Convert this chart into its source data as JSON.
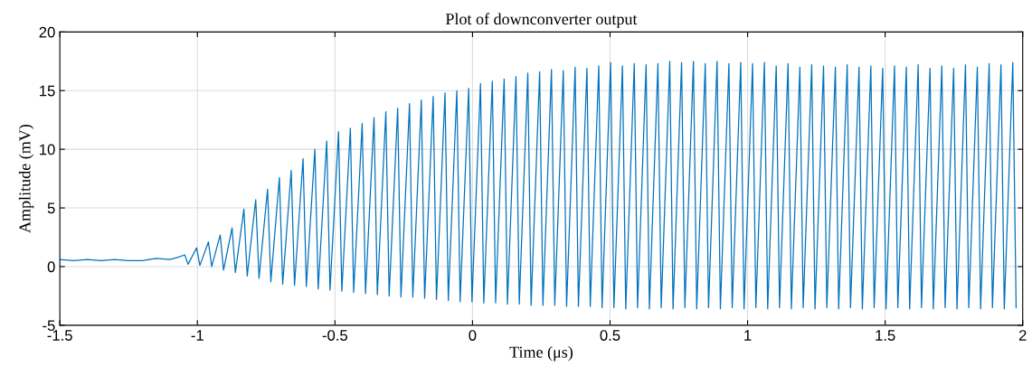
{
  "chart_data": {
    "type": "line",
    "title": "Plot of downconverter output",
    "xlabel": "Time (μs)",
    "ylabel": "Amplitude (mV)",
    "xlim": [
      -1.5,
      2
    ],
    "xticks": [
      -1.5,
      -1,
      -0.5,
      0,
      0.5,
      1,
      1.5,
      2
    ],
    "ylim": [
      -5,
      20
    ],
    "yticks": [
      -5,
      0,
      5,
      10,
      15,
      20
    ],
    "grid": true,
    "line_style": "solid",
    "marker": "none",
    "series": [
      {
        "color": "#0072bd",
        "x": [
          -1.5,
          -1.45,
          -1.4,
          -1.35,
          -1.3,
          -1.25,
          -1.2,
          -1.15,
          -1.1,
          -1.07,
          -1.046,
          -1.034,
          -1.003,
          -0.991,
          -0.96,
          -0.948,
          -0.917,
          -0.905,
          -0.874,
          -0.862,
          -0.831,
          -0.819,
          -0.788,
          -0.776,
          -0.745,
          -0.733,
          -0.702,
          -0.69,
          -0.659,
          -0.647,
          -0.616,
          -0.604,
          -0.573,
          -0.561,
          -0.53,
          -0.518,
          -0.487,
          -0.475,
          -0.444,
          -0.432,
          -0.401,
          -0.389,
          -0.358,
          -0.346,
          -0.315,
          -0.303,
          -0.272,
          -0.26,
          -0.229,
          -0.217,
          -0.186,
          -0.174,
          -0.143,
          -0.131,
          -0.1,
          -0.088,
          -0.057,
          -0.045,
          -0.014,
          -0.002,
          0.029,
          0.041,
          0.072,
          0.084,
          0.115,
          0.127,
          0.158,
          0.17,
          0.201,
          0.213,
          0.244,
          0.256,
          0.287,
          0.299,
          0.33,
          0.342,
          0.373,
          0.385,
          0.416,
          0.428,
          0.459,
          0.471,
          0.502,
          0.514,
          0.545,
          0.557,
          0.588,
          0.6,
          0.631,
          0.643,
          0.674,
          0.686,
          0.717,
          0.729,
          0.76,
          0.772,
          0.803,
          0.815,
          0.846,
          0.858,
          0.889,
          0.901,
          0.932,
          0.944,
          0.975,
          0.987,
          1.018,
          1.03,
          1.061,
          1.073,
          1.104,
          1.116,
          1.147,
          1.159,
          1.19,
          1.202,
          1.233,
          1.245,
          1.276,
          1.288,
          1.319,
          1.331,
          1.362,
          1.374,
          1.405,
          1.417,
          1.448,
          1.46,
          1.491,
          1.503,
          1.534,
          1.546,
          1.577,
          1.589,
          1.62,
          1.632,
          1.663,
          1.675,
          1.706,
          1.718,
          1.749,
          1.761,
          1.792,
          1.804,
          1.835,
          1.847,
          1.878,
          1.89,
          1.921,
          1.933,
          1.964,
          1.976
        ],
        "values": [
          0.6,
          0.5,
          0.6,
          0.5,
          0.6,
          0.5,
          0.5,
          0.7,
          0.6,
          0.8,
          1.0,
          0.2,
          1.6,
          0.1,
          2.1,
          0.0,
          2.7,
          -0.3,
          3.3,
          -0.5,
          4.9,
          -0.8,
          5.7,
          -1.0,
          6.6,
          -1.3,
          7.6,
          -1.5,
          8.2,
          -1.6,
          9.2,
          -1.7,
          10.0,
          -1.9,
          10.7,
          -2.0,
          11.5,
          -2.1,
          11.8,
          -2.2,
          12.2,
          -2.3,
          12.7,
          -2.4,
          13.2,
          -2.5,
          13.5,
          -2.6,
          13.9,
          -2.6,
          14.2,
          -2.7,
          14.5,
          -2.8,
          14.8,
          -2.9,
          15.0,
          -3.0,
          15.2,
          -3.0,
          15.6,
          -3.1,
          15.8,
          -3.1,
          16.0,
          -3.2,
          16.2,
          -3.2,
          16.5,
          -3.3,
          16.6,
          -3.3,
          16.8,
          -3.3,
          16.7,
          -3.4,
          17.0,
          -3.4,
          16.9,
          -3.4,
          17.1,
          -3.5,
          17.4,
          -3.5,
          17.1,
          -3.6,
          17.3,
          -3.5,
          17.2,
          -3.6,
          17.3,
          -3.5,
          17.5,
          -3.6,
          17.4,
          -3.5,
          17.5,
          -3.6,
          17.3,
          -3.5,
          17.5,
          -3.6,
          17.3,
          -3.5,
          17.4,
          -3.6,
          17.3,
          -3.5,
          17.4,
          -3.6,
          17.1,
          -3.5,
          17.3,
          -3.6,
          17.0,
          -3.5,
          17.2,
          -3.6,
          17.1,
          -3.5,
          17.0,
          -3.6,
          17.2,
          -3.5,
          17.0,
          -3.6,
          17.1,
          -3.5,
          16.9,
          -3.6,
          17.1,
          -3.5,
          17.0,
          -3.6,
          17.2,
          -3.5,
          16.9,
          -3.6,
          17.1,
          -3.5,
          16.9,
          -3.6,
          17.2,
          -3.5,
          17.0,
          -3.6,
          17.3,
          -3.5,
          17.2,
          -3.6,
          17.4,
          -3.5
        ]
      }
    ]
  }
}
